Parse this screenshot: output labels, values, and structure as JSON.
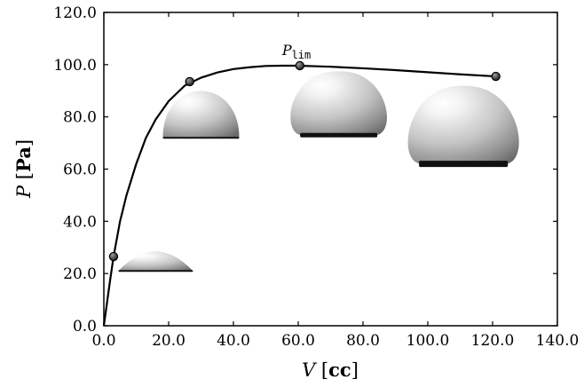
{
  "chart_data": {
    "type": "line",
    "xlabel": {
      "symbol": "V",
      "unit": "cc"
    },
    "ylabel": {
      "symbol": "P",
      "unit": "Pa"
    },
    "xlim": [
      0,
      140
    ],
    "ylim": [
      0,
      120
    ],
    "x_ticks": [
      "0.0",
      "20.0",
      "40.0",
      "60.0",
      "80.0",
      "100.0",
      "120.0",
      "140.0"
    ],
    "y_ticks": [
      "0.0",
      "20.0",
      "40.0",
      "60.0",
      "80.0",
      "100.0",
      "120.0"
    ],
    "grid": false,
    "curve": {
      "x": [
        0,
        1,
        2,
        3,
        5,
        7,
        10,
        13,
        16,
        20,
        25,
        30,
        35,
        40,
        45,
        50,
        55,
        60,
        70,
        80,
        90,
        100,
        110,
        121
      ],
      "y": [
        0,
        9,
        18,
        26.5,
        40,
        50,
        62,
        72,
        79,
        86,
        92,
        95,
        97,
        98.3,
        99,
        99.5,
        99.6,
        99.6,
        99.2,
        98.6,
        97.9,
        97.1,
        96.3,
        95.5
      ]
    },
    "points": [
      {
        "x": 3,
        "y": 26.5
      },
      {
        "x": 26.5,
        "y": 93.5
      },
      {
        "x": 60.5,
        "y": 99.6,
        "label": "P",
        "label_sub": "lim"
      },
      {
        "x": 121,
        "y": 95.5
      }
    ],
    "droplets": [
      {
        "x": 16,
        "y": 21,
        "kind": "cap"
      },
      {
        "x": 30,
        "y": 72,
        "kind": "dome"
      },
      {
        "x": 72.5,
        "y": 73,
        "kind": "sphere"
      },
      {
        "x": 111,
        "y": 62,
        "kind": "big-sphere"
      }
    ]
  }
}
